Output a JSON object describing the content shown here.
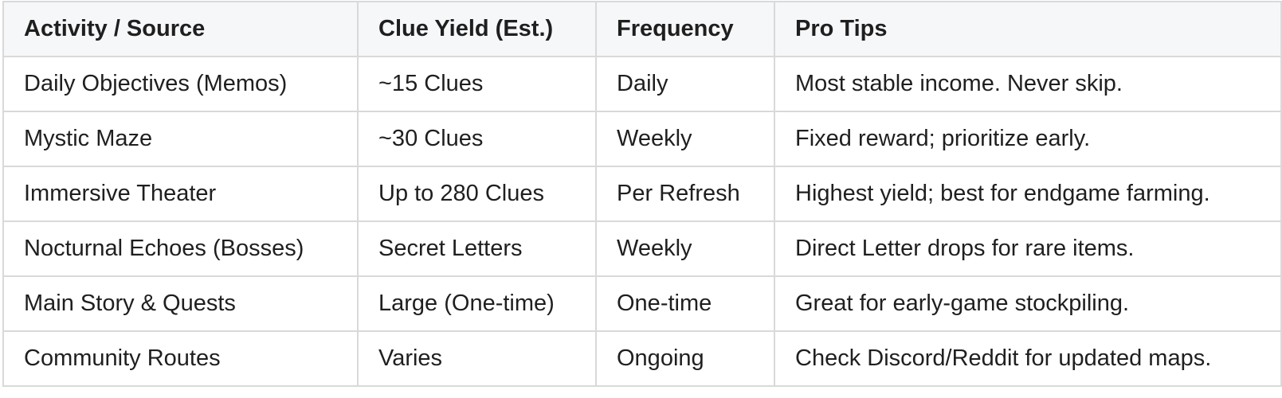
{
  "table": {
    "headers": [
      "Activity / Source",
      "Clue Yield (Est.)",
      "Frequency",
      "Pro Tips"
    ],
    "rows": [
      [
        "Daily Objectives (Memos)",
        "~15 Clues",
        "Daily",
        "Most stable income. Never skip."
      ],
      [
        "Mystic Maze",
        "~30 Clues",
        "Weekly",
        "Fixed reward; prioritize early."
      ],
      [
        "Immersive Theater",
        "Up to 280 Clues",
        "Per Refresh",
        "Highest yield; best for endgame farming."
      ],
      [
        "Nocturnal Echoes (Bosses)",
        "Secret Letters",
        "Weekly",
        "Direct Letter drops for rare items."
      ],
      [
        "Main Story & Quests",
        "Large (One-time)",
        "One-time",
        "Great for early-game stockpiling."
      ],
      [
        "Community Routes",
        "Varies",
        "Ongoing",
        "Check Discord/Reddit for updated maps."
      ]
    ]
  }
}
